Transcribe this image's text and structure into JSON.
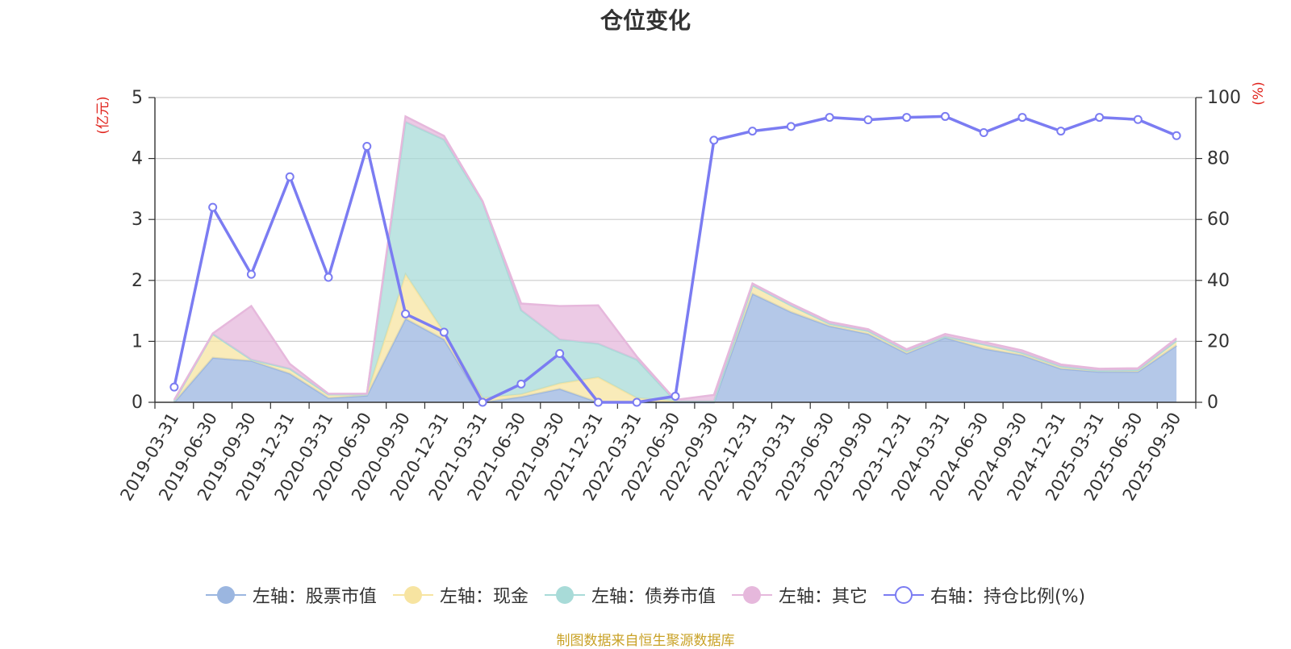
{
  "title": "仓位变化",
  "source_note": "制图数据来自恒生聚源数据库",
  "chart_data": {
    "type": "area",
    "categories": [
      "2019-03-31",
      "2019-06-30",
      "2019-09-30",
      "2019-12-31",
      "2020-03-31",
      "2020-06-30",
      "2020-09-30",
      "2020-12-31",
      "2021-03-31",
      "2021-06-30",
      "2021-09-30",
      "2021-12-31",
      "2022-03-31",
      "2022-06-30",
      "2022-09-30",
      "2022-12-31",
      "2023-03-31",
      "2023-06-30",
      "2023-09-30",
      "2023-12-31",
      "2024-03-31",
      "2024-06-30",
      "2024-09-30",
      "2024-12-31",
      "2025-03-31",
      "2025-06-30",
      "2025-09-30"
    ],
    "left_axis": {
      "label": "(亿元)",
      "ylim": [
        0,
        5
      ],
      "ticks": [
        0,
        1,
        2,
        3,
        4,
        5
      ]
    },
    "right_axis": {
      "label": "(%)",
      "ylim": [
        0,
        100
      ],
      "ticks": [
        0,
        20,
        40,
        60,
        80,
        100
      ]
    },
    "grid": true,
    "legend_position": "bottom",
    "series": [
      {
        "name": "左轴：股票市值",
        "axis": "left",
        "stack": true,
        "color": "#9bb6e0",
        "values": [
          0.0,
          0.73,
          0.68,
          0.47,
          0.07,
          0.11,
          1.37,
          1.03,
          0.0,
          0.09,
          0.22,
          0.0,
          0.0,
          0.0,
          0.0,
          1.78,
          1.48,
          1.25,
          1.12,
          0.8,
          1.06,
          0.88,
          0.77,
          0.55,
          0.5,
          0.5,
          0.93
        ]
      },
      {
        "name": "左轴：现金",
        "axis": "left",
        "stack": true,
        "color": "#f7e4a1",
        "values": [
          0.02,
          0.39,
          0.02,
          0.08,
          0.06,
          0.02,
          0.73,
          0.12,
          0.07,
          0.04,
          0.09,
          0.41,
          0.07,
          0.02,
          0.02,
          0.14,
          0.11,
          0.04,
          0.05,
          0.04,
          0.02,
          0.07,
          0.04,
          0.04,
          0.02,
          0.03,
          0.08
        ]
      },
      {
        "name": "左轴：债券市值",
        "axis": "left",
        "stack": true,
        "color": "#a8dbd8",
        "values": [
          0.0,
          0.0,
          0.0,
          0.0,
          0.0,
          0.0,
          2.5,
          3.16,
          3.22,
          1.38,
          0.72,
          0.55,
          0.63,
          0.0,
          0.0,
          0.0,
          0.0,
          0.0,
          0.0,
          0.0,
          0.0,
          0.0,
          0.0,
          0.0,
          0.0,
          0.0,
          0.0
        ]
      },
      {
        "name": "左轴：其它",
        "axis": "left",
        "stack": true,
        "color": "#e6b8dc",
        "values": [
          0.02,
          0.01,
          0.88,
          0.08,
          0.01,
          0.01,
          0.09,
          0.06,
          0.01,
          0.11,
          0.55,
          0.63,
          0.05,
          0.02,
          0.1,
          0.03,
          0.03,
          0.03,
          0.03,
          0.03,
          0.04,
          0.04,
          0.04,
          0.03,
          0.03,
          0.03,
          0.04
        ]
      },
      {
        "name": "右轴：持仓比例(%)",
        "axis": "right",
        "type": "line",
        "color": "#7b7cf2",
        "values": [
          5.0,
          64.0,
          42.0,
          74.0,
          41.0,
          84.0,
          29.0,
          23.0,
          0.0,
          6.0,
          16.0,
          0.0,
          0.0,
          2.0,
          86.0,
          89.0,
          90.5,
          93.5,
          92.7,
          93.5,
          93.8,
          88.5,
          93.5,
          89.0,
          93.5,
          92.8,
          87.5
        ]
      }
    ]
  }
}
